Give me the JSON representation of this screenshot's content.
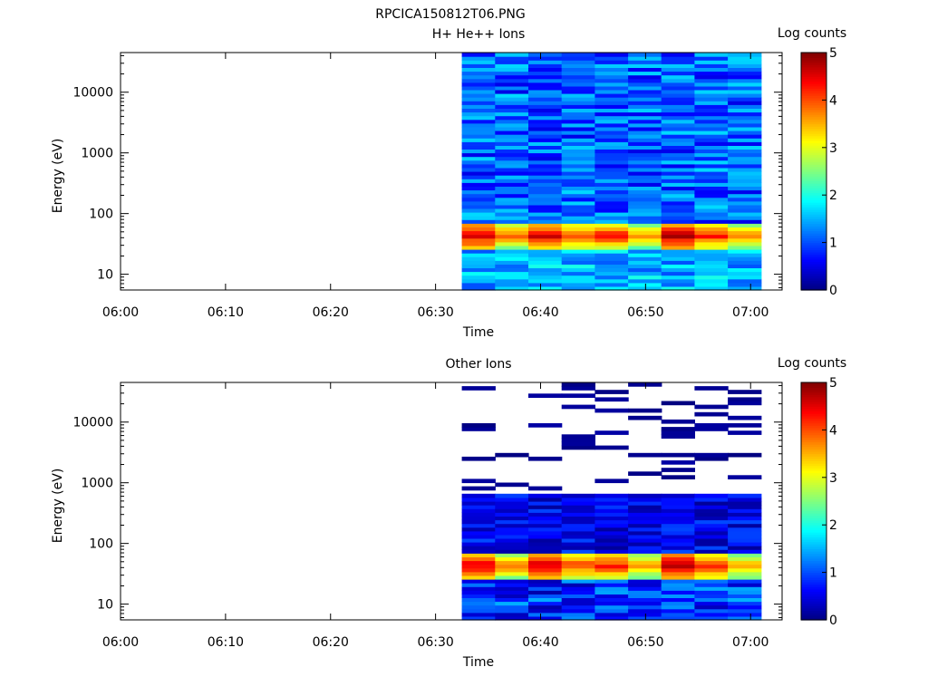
{
  "page": {
    "title": "RPCICA150812T06.PNG"
  },
  "chart_data": [
    {
      "type": "heatmap",
      "title": "H+ He++ Ions",
      "xlabel": "Time",
      "ylabel": "Energy (eV)",
      "x_tick_labels": [
        "06:00",
        "06:10",
        "06:20",
        "06:30",
        "06:40",
        "06:50",
        "07:00"
      ],
      "x_ticks": [
        "06:00",
        "06:10",
        "06:20",
        "06:30",
        "06:40",
        "06:50",
        "07:00"
      ],
      "xlim": [
        "06:00",
        "07:03"
      ],
      "y_scale": "log",
      "ylim": [
        5.5,
        45000
      ],
      "y_tick_labels": [
        "10",
        "100",
        "1000",
        "10000"
      ],
      "y_ticks": [
        10,
        100,
        1000,
        10000
      ],
      "colorbar": {
        "label": "Log counts",
        "range": [
          0,
          5
        ],
        "ticks": [
          0,
          1,
          2,
          3,
          4,
          5
        ],
        "colormap": "rainbow"
      },
      "time_bins": [
        "06:32:30",
        "06:35:40",
        "06:38:50",
        "06:42:00",
        "06:45:10",
        "06:48:20",
        "06:51:30",
        "06:54:40",
        "06:57:50",
        "07:01:00"
      ],
      "energy_bands": [
        {
          "label": "background high energies",
          "e_min": 70,
          "e_max": 42000,
          "log_counts_range": [
            0.5,
            1.7
          ]
        },
        {
          "label": "low-energy peak",
          "e_min": 25,
          "e_max": 70,
          "log_counts_by_bin": [
            4.6,
            3.9,
            4.6,
            4.1,
            4.3,
            3.6,
            4.8,
            4.3,
            3.7
          ]
        },
        {
          "label": "lowest energies",
          "e_min": 5.5,
          "e_max": 25,
          "log_counts_range": [
            1.0,
            2.0
          ]
        }
      ],
      "notes_visible": ""
    },
    {
      "type": "heatmap",
      "title": "Other Ions",
      "xlabel": "Time",
      "ylabel": "Energy (eV)",
      "x_tick_labels": [
        "06:00",
        "06:10",
        "06:20",
        "06:30",
        "06:40",
        "06:50",
        "07:00"
      ],
      "x_ticks": [
        "06:00",
        "06:10",
        "06:20",
        "06:30",
        "06:40",
        "06:50",
        "07:00"
      ],
      "xlim": [
        "06:00",
        "07:03"
      ],
      "y_scale": "log",
      "ylim": [
        5.5,
        45000
      ],
      "y_tick_labels": [
        "10",
        "100",
        "1000",
        "10000"
      ],
      "y_ticks": [
        10,
        100,
        1000,
        10000
      ],
      "colorbar": {
        "label": "Log counts",
        "range": [
          0,
          5
        ],
        "ticks": [
          0,
          1,
          2,
          3,
          4,
          5
        ],
        "colormap": "rainbow"
      },
      "time_bins": [
        "06:32:30",
        "06:35:40",
        "06:38:50",
        "06:42:00",
        "06:45:10",
        "06:48:20",
        "06:51:30",
        "06:54:40",
        "06:57:50",
        "07:01:00"
      ],
      "energy_bands": [
        {
          "label": "sparse high energies",
          "e_min": 700,
          "e_max": 42000,
          "log_counts_range": [
            0.0,
            0.2
          ]
        },
        {
          "label": "mid energies",
          "e_min": 70,
          "e_max": 700,
          "log_counts_range": [
            0.1,
            1.0
          ]
        },
        {
          "label": "low-energy peak",
          "e_min": 25,
          "e_max": 70,
          "log_counts_by_bin": [
            4.6,
            3.9,
            4.6,
            4.1,
            4.3,
            3.6,
            4.8,
            4.3,
            3.7
          ]
        },
        {
          "label": "lowest energies",
          "e_min": 5.5,
          "e_max": 25,
          "log_counts_range": [
            0.2,
            1.5
          ]
        }
      ]
    }
  ]
}
